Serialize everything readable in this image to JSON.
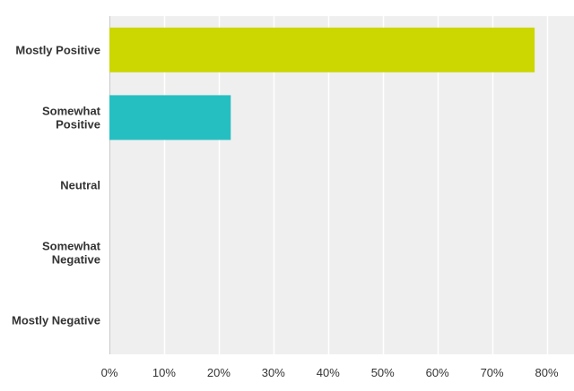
{
  "chart_data": {
    "type": "bar",
    "orientation": "horizontal",
    "categories": [
      [
        "Mostly Positive"
      ],
      [
        "Somewhat",
        "Positive"
      ],
      [
        "Neutral"
      ],
      [
        "Somewhat",
        "Negative"
      ],
      [
        "Mostly Negative"
      ]
    ],
    "values": [
      77.8,
      22.2,
      0,
      0,
      0
    ],
    "value_unit": "%",
    "xlim": [
      0,
      85
    ],
    "x_ticks": [
      "0%",
      "10%",
      "20%",
      "30%",
      "40%",
      "50%",
      "60%",
      "70%",
      "80%"
    ],
    "x_tick_values": [
      0,
      10,
      20,
      30,
      40,
      50,
      60,
      70,
      80
    ],
    "grid": true,
    "colors": [
      "#ccd600",
      "#26bfc1",
      "#a96ab5",
      "#f2994a",
      "#4a90d9"
    ],
    "title": "",
    "xlabel": "",
    "ylabel": ""
  }
}
